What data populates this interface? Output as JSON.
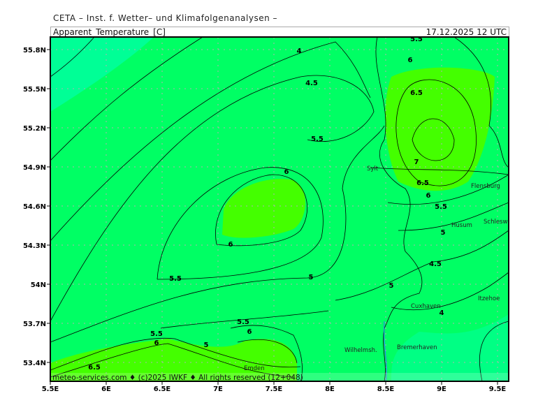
{
  "header": {
    "institute": "CETA – Inst. f. Wetter– und Klimafolgenanalysen –",
    "parameter": "Apparent_Temperature_[C]",
    "datetime": "17.12.2025 12 UTC"
  },
  "footer": "meteo-services.com ♦ (c)2025 IWKF ♦ All rights reserved (12+048)",
  "axes": {
    "lon_ticks": [
      "5.5E",
      "6E",
      "6.5E",
      "7E",
      "7.5E",
      "8E",
      "8.5E",
      "9E",
      "9.5E"
    ],
    "lat_ticks": [
      "55.8N",
      "55.5N",
      "55.2N",
      "54.9N",
      "54.6N",
      "54.3N",
      "54N",
      "53.7N",
      "53.4N"
    ]
  },
  "contour_labels": [
    "4",
    "4.5",
    "5.5",
    "5.5",
    "6",
    "6",
    "6.5",
    "7",
    "6.5",
    "6",
    "5.5",
    "5",
    "4.5",
    "4",
    "5.5",
    "5",
    "5.5",
    "6",
    "5",
    "6",
    "5.5",
    "6.5",
    "5",
    "6"
  ],
  "cities": [
    "Sylt",
    "Flensburg",
    "Husum",
    "Schleswig",
    "Itzehoe",
    "Cuxhaven",
    "Bremerhaven",
    "Wilhelmsh.",
    "Emden"
  ],
  "colors": {
    "cold": "#00ff96",
    "mid": "#00ff64",
    "warm": "#44ff00",
    "warmer": "#33ff00",
    "south_east": "#00ff84",
    "contour": "#000000",
    "grid": "#b0b0b0"
  }
}
